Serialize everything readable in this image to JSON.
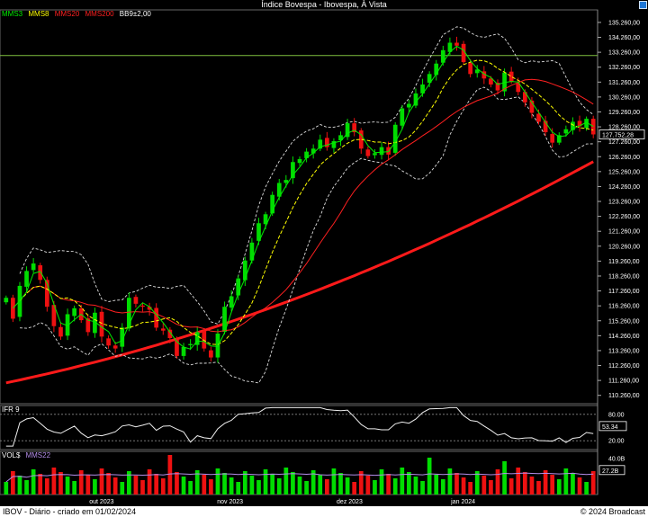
{
  "window": {
    "title": "Índice Bovespa - Ibovespa, À Vista"
  },
  "legend": {
    "mms3": "MMS3",
    "mms8": "MMS8",
    "mms20": "MMS20",
    "mms200": "MMS200",
    "bb": "BB9±2,00",
    "colors": {
      "mms3": "#00ee00",
      "mms8": "#ffff00",
      "mms20": "#ff2020",
      "mms200": "#ff2020",
      "bb": "#ffffff"
    }
  },
  "ifr_panel": {
    "label": "IFR 9",
    "levels": [
      "80.00",
      "20.00"
    ],
    "current": "53.34"
  },
  "vol_panel": {
    "label": "VOL$",
    "ma_label": "MMS22",
    "top_label": "40.0B",
    "current": "27.2B"
  },
  "footer": {
    "left": "IBOV - Diário - criado em 01/02/2024",
    "right": "© 2024 Broadcast"
  },
  "chart_data": {
    "type": "candlestick",
    "title": "Índice Bovespa - Ibovespa, À Vista",
    "y_ticks": [
      "135.260,00",
      "134.260,00",
      "133.260,00",
      "132.260,00",
      "131.260,00",
      "130.260,00",
      "129.260,00",
      "128.260,00",
      "127.260,00",
      "126.260,00",
      "125.260,00",
      "124.260,00",
      "123.260,00",
      "122.260,00",
      "121.260,00",
      "120.260,00",
      "119.260,00",
      "118.260,00",
      "117.260,00",
      "116.260,00",
      "115.260,00",
      "114.260,00",
      "113.260,00",
      "112.260,00",
      "111.260,00",
      "110.260,00"
    ],
    "x_ticks": [
      "out 2023",
      "nov 2023",
      "dez 2023",
      "jan 2024"
    ],
    "ylim": [
      109700,
      136100
    ],
    "last_price": "127.752,28",
    "horizontal_line": 133040,
    "closes": [
      116800,
      115400,
      117600,
      118600,
      119100,
      118000,
      116200,
      114900,
      114200,
      115700,
      116100,
      115300,
      114500,
      115800,
      114200,
      113600,
      113400,
      114800,
      116800,
      116400,
      116200,
      116000,
      114800,
      114600,
      114100,
      112900,
      113500,
      113700,
      114500,
      113400,
      112800,
      114400,
      116200,
      116900,
      118100,
      119300,
      120500,
      121800,
      122400,
      123700,
      124500,
      124700,
      125900,
      126100,
      126600,
      126800,
      127400,
      126900,
      127300,
      127700,
      128500,
      127900,
      126800,
      126300,
      126500,
      126900,
      126400,
      128400,
      129500,
      129800,
      130500,
      131100,
      131800,
      132500,
      133400,
      133900,
      133700,
      132600,
      131800,
      132100,
      131500,
      131100,
      130700,
      131900,
      131300,
      130600,
      129900,
      129200,
      128600,
      127900,
      127200,
      127700,
      128100,
      128600,
      128300,
      128800,
      127752
    ]
  }
}
